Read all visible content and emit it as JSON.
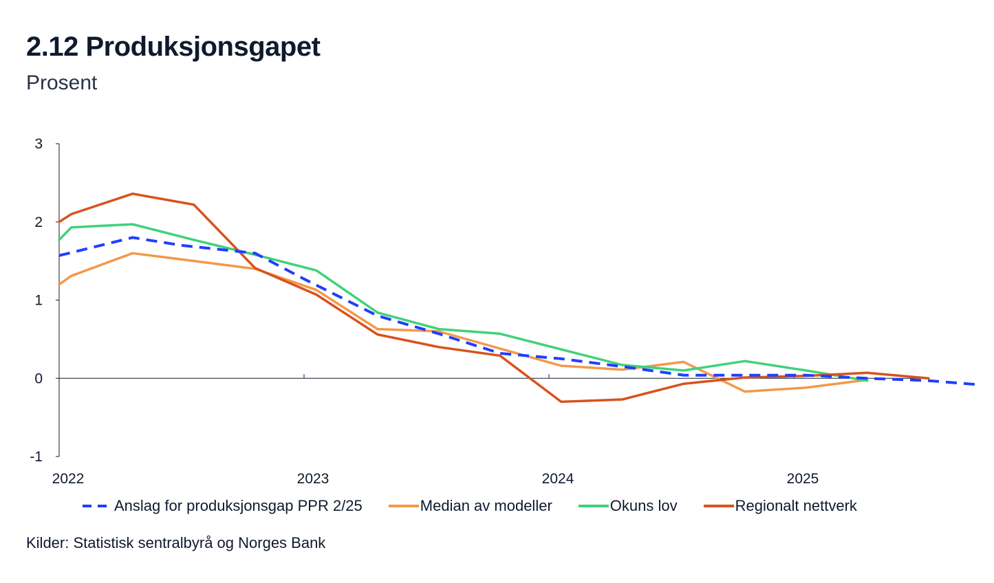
{
  "title": "2.12 Produksjonsgapet",
  "subtitle": "Prosent",
  "source": "Kilder: Statistisk sentralbyrå og Norges Bank",
  "colors": {
    "anslag": "#1f3fff",
    "median": "#f2994a",
    "okun": "#3fd27a",
    "regional": "#d8521e",
    "axis": "#0f1a2e"
  },
  "chart_data": {
    "type": "line",
    "title": "2.12 Produksjonsgapet",
    "ylabel": "Prosent",
    "xlabel": "",
    "xlim": [
      2022.0,
      2025.75
    ],
    "ylim": [
      -1,
      3
    ],
    "yticks": [
      3,
      2,
      1,
      0,
      -1
    ],
    "ytick_labels": [
      "3",
      "2",
      "1",
      "0",
      "-1"
    ],
    "xticks": [
      2022,
      2023,
      2024,
      2025
    ],
    "xtick_labels": [
      "2022",
      "2023",
      "2024",
      "2025"
    ],
    "grid": false,
    "legend_position": "bottom",
    "series": [
      {
        "name": "Anslag for produksjonsgap PPR 2/25",
        "key": "anslag",
        "dashed": true,
        "x": [
          2022.0,
          2022.3,
          2022.5,
          2022.8,
          2023.0,
          2023.3,
          2023.55,
          2023.8,
          2024.05,
          2024.3,
          2024.55,
          2024.8,
          2025.05,
          2025.3,
          2025.55,
          2025.75
        ],
        "y": [
          1.57,
          1.8,
          1.7,
          1.6,
          1.27,
          0.8,
          0.57,
          0.32,
          0.25,
          0.15,
          0.04,
          0.04,
          0.04,
          0.0,
          -0.03,
          -0.08
        ]
      },
      {
        "name": "Median av modeller",
        "key": "median",
        "dashed": false,
        "x": [
          2022.0,
          2022.05,
          2022.3,
          2022.55,
          2022.8,
          2023.05,
          2023.3,
          2023.55,
          2023.8,
          2024.05,
          2024.3,
          2024.55,
          2024.8,
          2025.05,
          2025.3
        ],
        "y": [
          1.2,
          1.31,
          1.6,
          1.5,
          1.4,
          1.13,
          0.63,
          0.6,
          0.38,
          0.16,
          0.11,
          0.21,
          -0.17,
          -0.12,
          -0.02
        ]
      },
      {
        "name": "Okuns lov",
        "key": "okun",
        "dashed": false,
        "x": [
          2022.0,
          2022.05,
          2022.3,
          2022.55,
          2022.8,
          2023.05,
          2023.3,
          2023.55,
          2023.8,
          2024.05,
          2024.3,
          2024.55,
          2024.8,
          2025.05,
          2025.3
        ],
        "y": [
          1.77,
          1.93,
          1.97,
          1.77,
          1.58,
          1.38,
          0.84,
          0.63,
          0.57,
          0.37,
          0.17,
          0.1,
          0.22,
          0.1,
          -0.03
        ]
      },
      {
        "name": "Regionalt nettverk",
        "key": "regional",
        "dashed": false,
        "x": [
          2022.0,
          2022.05,
          2022.3,
          2022.55,
          2022.8,
          2023.05,
          2023.3,
          2023.55,
          2023.8,
          2024.05,
          2024.3,
          2024.55,
          2024.8,
          2025.05,
          2025.3,
          2025.55
        ],
        "y": [
          2.0,
          2.1,
          2.36,
          2.22,
          1.41,
          1.07,
          0.56,
          0.4,
          0.29,
          -0.3,
          -0.27,
          -0.07,
          0.01,
          0.03,
          0.07,
          0.0
        ]
      }
    ]
  }
}
